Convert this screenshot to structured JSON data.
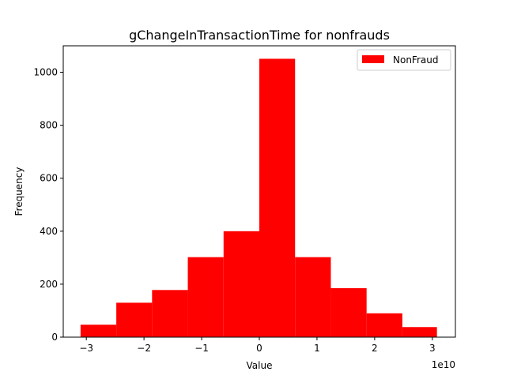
{
  "chart_data": {
    "type": "bar",
    "title": "gChangeInTransactionTime for nonfrauds",
    "xlabel": "Value",
    "ylabel": "Frequency",
    "x_offset_label": "1e10",
    "x_scale": 10000000000,
    "bin_edges": [
      -3.1,
      -2.48,
      -1.86,
      -1.24,
      -0.62,
      0.0,
      0.62,
      1.24,
      1.86,
      2.48,
      3.08
    ],
    "values": [
      47,
      130,
      178,
      302,
      400,
      1051,
      302,
      185,
      90,
      38
    ],
    "xlim": [
      -3.4,
      3.4
    ],
    "ylim": [
      0,
      1100
    ],
    "xticks": [
      -3,
      -2,
      -1,
      0,
      1,
      2,
      3
    ],
    "xtick_labels": [
      "−3",
      "−2",
      "−1",
      "0",
      "1",
      "2",
      "3"
    ],
    "yticks": [
      0,
      200,
      400,
      600,
      800,
      1000
    ],
    "ytick_labels": [
      "0",
      "200",
      "400",
      "600",
      "800",
      "1000"
    ],
    "series": [
      {
        "name": "NonFraud",
        "color": "#ff0000"
      }
    ],
    "legend_position": "top-right",
    "grid": false
  }
}
